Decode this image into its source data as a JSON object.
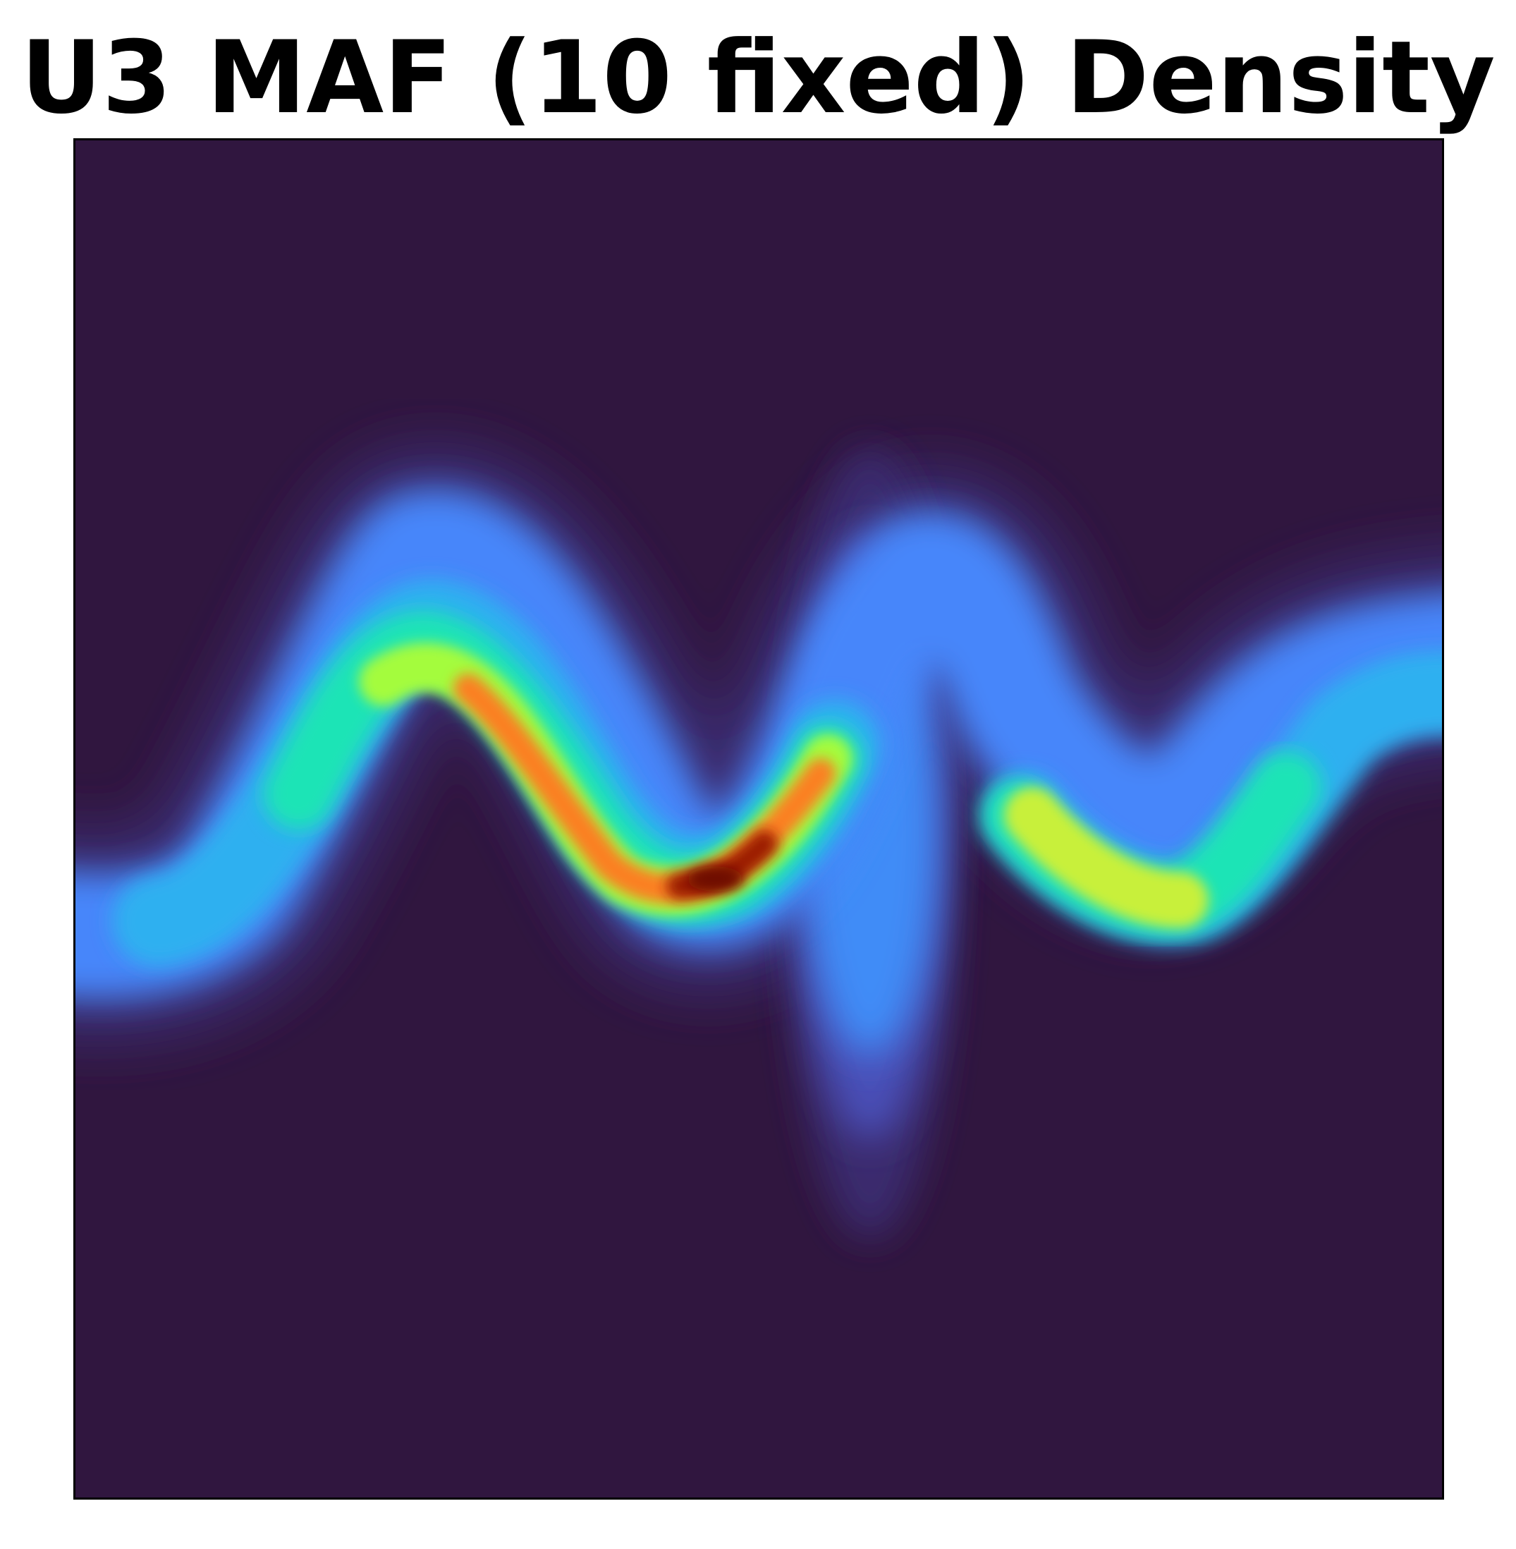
{
  "chart_data": {
    "type": "heatmap",
    "title": "U3 MAF (10 fixed) Density",
    "xlabel": "",
    "ylabel": "",
    "axes_ticks_visible": false,
    "colormap": "turbo",
    "colors": {
      "background": "#30163f",
      "low": "#30123b",
      "mid_blue": "#4686fa",
      "cyan": "#1ae4b6",
      "yellow_green": "#a4fc3c",
      "orange": "#fb8022",
      "peak": "#7a0403"
    },
    "density_samples": [
      {
        "region": "left edge",
        "relative_density": 0.25
      },
      {
        "region": "first crest",
        "relative_density": 0.6
      },
      {
        "region": "descending slope",
        "relative_density": 0.72
      },
      {
        "region": "first trough (maximum)",
        "relative_density": 1.0
      },
      {
        "region": "central vertical spread",
        "relative_density": 0.25
      },
      {
        "region": "second trough",
        "relative_density": 0.55
      },
      {
        "region": "right edge",
        "relative_density": 0.25
      }
    ],
    "grid": false,
    "legend": "none"
  }
}
